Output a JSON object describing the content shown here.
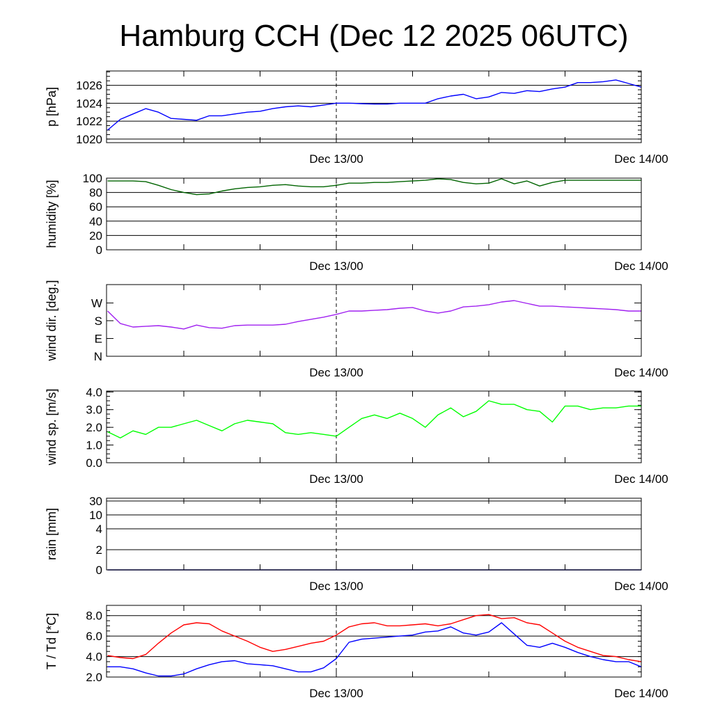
{
  "chart_data": {
    "title": "Hamburg CCH (Dec 12 2025 06UTC)",
    "x_unit": "hours since Dec 12 06UTC",
    "x_range": [
      0,
      42
    ],
    "x_tick_labels": [
      {
        "x": 18,
        "label": "Dec 13/00"
      },
      {
        "x": 42,
        "label": "Dec 14/00"
      }
    ],
    "x_minor_ticks": [
      6,
      12,
      18,
      24,
      30,
      36
    ],
    "marker_line_x": 18,
    "panels": [
      {
        "id": "pressure",
        "type": "line",
        "ylabel": "p [hPa]",
        "ylim": [
          1019.6,
          1027.6
        ],
        "grid": true,
        "yticks": [
          {
            "v": 1020,
            "label": "1020"
          },
          {
            "v": 1022,
            "label": "1022"
          },
          {
            "v": 1024,
            "label": "1024"
          },
          {
            "v": 1026,
            "label": "1026"
          }
        ],
        "minor_step": 0.5,
        "series": [
          {
            "name": "pressure",
            "color": "#0000ff",
            "values": [
              1021.0,
              1022.2,
              1022.8,
              1023.4,
              1023.0,
              1022.3,
              1022.2,
              1022.1,
              1022.6,
              1022.6,
              1022.8,
              1023.0,
              1023.1,
              1023.4,
              1023.6,
              1023.7,
              1023.6,
              1023.8,
              1024.0,
              1024.0,
              1023.95,
              1023.9,
              1023.9,
              1024.0,
              1024.0,
              1024.0,
              1024.5,
              1024.8,
              1025.0,
              1024.5,
              1024.7,
              1025.2,
              1025.1,
              1025.4,
              1025.3,
              1025.6,
              1025.8,
              1026.3,
              1026.3,
              1026.4,
              1026.6,
              1026.2,
              1025.8
            ]
          }
        ]
      },
      {
        "id": "humidity",
        "type": "line",
        "ylabel": "humidity [%]",
        "ylim": [
          0,
          100
        ],
        "grid": true,
        "yticks": [
          {
            "v": 0,
            "label": "0"
          },
          {
            "v": 20,
            "label": "20"
          },
          {
            "v": 40,
            "label": "40"
          },
          {
            "v": 60,
            "label": "60"
          },
          {
            "v": 80,
            "label": "80"
          },
          {
            "v": 100,
            "label": "100"
          }
        ],
        "minor_step": 0,
        "series": [
          {
            "name": "humidity",
            "color": "#006400",
            "values": [
              96,
              96,
              96,
              95,
              90,
              84,
              80,
              77,
              78,
              82,
              85,
              87,
              88,
              90,
              91,
              89,
              88,
              88,
              90,
              93,
              93,
              94,
              94,
              95,
              96,
              97,
              99,
              98,
              94,
              92,
              93,
              99,
              92,
              96,
              89,
              94,
              97,
              97,
              97,
              97,
              97,
              97,
              97
            ]
          }
        ]
      },
      {
        "id": "wind_dir",
        "type": "line",
        "ylabel": "wind dir. [deg.]",
        "ylim": [
          0,
          363
        ],
        "grid": false,
        "yticks": [
          {
            "v": 0,
            "label": "N"
          },
          {
            "v": 90,
            "label": "E"
          },
          {
            "v": 180,
            "label": "S"
          },
          {
            "v": 270,
            "label": "W"
          }
        ],
        "minor_step": 0,
        "series": [
          {
            "name": "wind direction",
            "color": "#a020f0",
            "values": [
              229,
              166,
              148,
              152,
              155,
              148,
              138,
              158,
              145,
              142,
              155,
              158,
              158,
              158,
              162,
              176,
              187,
              198,
              212,
              229,
              229,
              233,
              236,
              243,
              247,
              229,
              219,
              229,
              250,
              254,
              261,
              275,
              282,
              268,
              254,
              254,
              250,
              247,
              243,
              240,
              236,
              229,
              229
            ]
          }
        ]
      },
      {
        "id": "wind_speed",
        "type": "line",
        "ylabel": "wind sp. [m/s]",
        "ylim": [
          0,
          4.05
        ],
        "grid": false,
        "yticks": [
          {
            "v": 0,
            "label": "0.0"
          },
          {
            "v": 1,
            "label": "1.0"
          },
          {
            "v": 2,
            "label": "2.0"
          },
          {
            "v": 3,
            "label": "3.0"
          },
          {
            "v": 4,
            "label": "4.0"
          }
        ],
        "minor_step": 0.25,
        "series": [
          {
            "name": "wind speed",
            "color": "#00ff00",
            "values": [
              1.75,
              1.4,
              1.8,
              1.6,
              2.0,
              2.0,
              2.2,
              2.4,
              2.1,
              1.8,
              2.2,
              2.4,
              2.3,
              2.2,
              1.7,
              1.6,
              1.7,
              1.6,
              1.5,
              2.0,
              2.5,
              2.7,
              2.5,
              2.8,
              2.5,
              2.0,
              2.7,
              3.1,
              2.6,
              2.9,
              3.5,
              3.3,
              3.3,
              3.0,
              2.9,
              2.3,
              3.2,
              3.2,
              3.0,
              3.1,
              3.1,
              3.2,
              3.2
            ]
          }
        ]
      },
      {
        "id": "rain",
        "type": "line",
        "ylabel": "rain [mm]",
        "ylim": [
          0,
          30
        ],
        "grid": true,
        "scale": "nonlinear",
        "yticks": [
          {
            "v": 0,
            "label": "0"
          },
          {
            "v": 2,
            "label": "2"
          },
          {
            "v": 4,
            "label": "4"
          },
          {
            "v": 10,
            "label": "10"
          },
          {
            "v": 30,
            "label": "30"
          }
        ],
        "minor_step": 0,
        "series": [
          {
            "name": "rain",
            "color": "#00008b",
            "values": [
              0,
              0,
              0,
              0,
              0,
              0,
              0,
              0,
              0,
              0,
              0,
              0,
              0,
              0,
              0,
              0,
              0,
              0,
              0,
              0,
              0,
              0,
              0,
              0,
              0,
              0,
              0,
              0,
              0,
              0,
              0,
              0,
              0,
              0,
              0,
              0,
              0,
              0,
              0,
              0,
              0,
              0,
              0
            ]
          }
        ]
      },
      {
        "id": "temperature",
        "type": "line",
        "ylabel": "T / Td [*C]",
        "ylim": [
          2.0,
          9.0
        ],
        "grid": true,
        "yticks": [
          {
            "v": 2,
            "label": "2.0"
          },
          {
            "v": 4,
            "label": "4.0"
          },
          {
            "v": 6,
            "label": "6.0"
          },
          {
            "v": 8,
            "label": "8.0"
          }
        ],
        "minor_step": 0.5,
        "series": [
          {
            "name": "T",
            "color": "#ff0000",
            "values": [
              4.1,
              3.9,
              3.8,
              4.2,
              5.3,
              6.3,
              7.1,
              7.3,
              7.2,
              6.5,
              6.0,
              5.5,
              4.9,
              4.5,
              4.7,
              5.0,
              5.3,
              5.5,
              6.1,
              6.9,
              7.2,
              7.3,
              7.0,
              7.0,
              7.1,
              7.2,
              7.0,
              7.2,
              7.6,
              8.0,
              8.1,
              7.7,
              7.8,
              7.3,
              7.1,
              6.3,
              5.5,
              4.9,
              4.5,
              4.1,
              4.0,
              3.7,
              3.5
            ]
          },
          {
            "name": "Td",
            "color": "#0000ff",
            "values": [
              3.0,
              3.0,
              2.8,
              2.4,
              2.1,
              2.1,
              2.3,
              2.8,
              3.2,
              3.5,
              3.6,
              3.3,
              3.2,
              3.1,
              2.8,
              2.5,
              2.5,
              2.9,
              3.8,
              5.4,
              5.7,
              5.8,
              5.9,
              6.0,
              6.1,
              6.4,
              6.5,
              6.9,
              6.3,
              6.1,
              6.4,
              7.3,
              6.2,
              5.1,
              4.9,
              5.3,
              4.9,
              4.4,
              4.0,
              3.7,
              3.5,
              3.5,
              3.0
            ]
          }
        ]
      }
    ]
  }
}
